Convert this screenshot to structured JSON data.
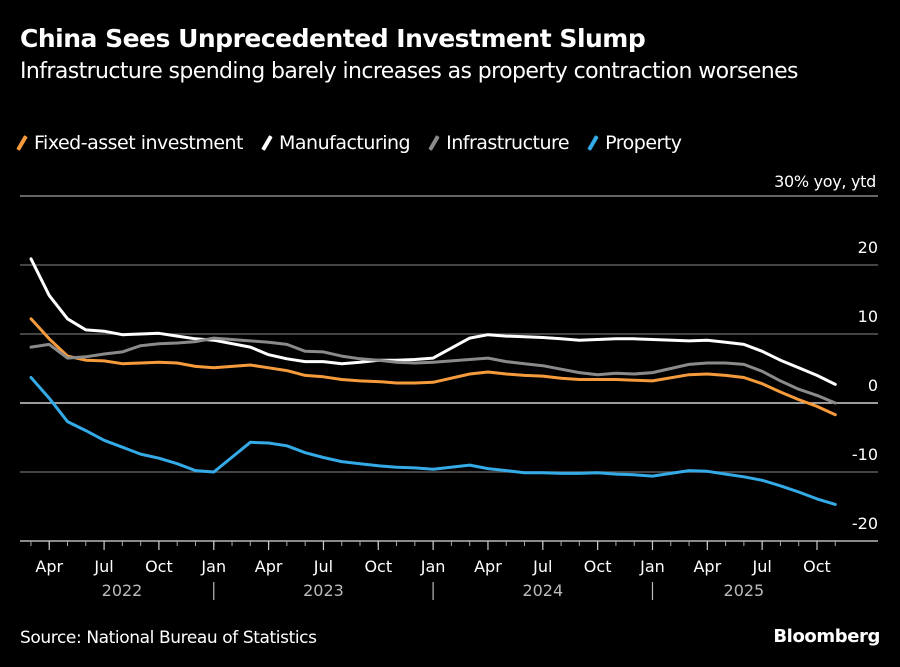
{
  "header": {
    "title": "China Sees Unprecedented Investment Slump",
    "subtitle": "Infrastructure spending barely increases as property contraction worsenes"
  },
  "footer": {
    "source": "Source: National Bureau of Statistics",
    "brand": "Bloomberg"
  },
  "chart_data": {
    "type": "line",
    "title": "China Sees Unprecedented Investment Slump",
    "subtitle": "Infrastructure spending barely increases as property contraction worsenes",
    "unit_label": "30% yoy, ytd",
    "xlabel": "",
    "ylabel": "% yoy, ytd",
    "ylim": [
      -20,
      30
    ],
    "yticks": [
      20,
      10,
      0,
      -10,
      -20
    ],
    "ytick_labels": [
      "20",
      "10",
      "0",
      "-10",
      "-20"
    ],
    "grid": true,
    "legend_position": "top-left",
    "x": [
      "2022-02",
      "2022-03",
      "2022-04",
      "2022-05",
      "2022-06",
      "2022-07",
      "2022-08",
      "2022-09",
      "2022-10",
      "2022-11",
      "2022-12",
      "2023-02",
      "2023-03",
      "2023-04",
      "2023-05",
      "2023-06",
      "2023-07",
      "2023-08",
      "2023-09",
      "2023-10",
      "2023-11",
      "2023-12",
      "2024-02",
      "2024-03",
      "2024-04",
      "2024-05",
      "2024-06",
      "2024-07",
      "2024-08",
      "2024-09",
      "2024-10",
      "2024-11",
      "2024-12",
      "2025-02",
      "2025-03",
      "2025-04",
      "2025-05",
      "2025-06",
      "2025-07",
      "2025-08",
      "2025-09",
      "2025-10"
    ],
    "x_month_labels": [
      {
        "label": "Apr",
        "month": "2022-04"
      },
      {
        "label": "Jul",
        "month": "2022-07"
      },
      {
        "label": "Oct",
        "month": "2022-10"
      },
      {
        "label": "Jan",
        "month": "2023-01"
      },
      {
        "label": "Apr",
        "month": "2023-04"
      },
      {
        "label": "Jul",
        "month": "2023-07"
      },
      {
        "label": "Oct",
        "month": "2023-10"
      },
      {
        "label": "Jan",
        "month": "2024-01"
      },
      {
        "label": "Apr",
        "month": "2024-04"
      },
      {
        "label": "Jul",
        "month": "2024-07"
      },
      {
        "label": "Oct",
        "month": "2024-10"
      },
      {
        "label": "Jan",
        "month": "2025-01"
      },
      {
        "label": "Apr",
        "month": "2025-04"
      },
      {
        "label": "Jul",
        "month": "2025-07"
      },
      {
        "label": "Oct",
        "month": "2025-10"
      }
    ],
    "x_year_labels": [
      "2022",
      "2023",
      "2024",
      "2025"
    ],
    "series": [
      {
        "name": "Fixed-asset investment",
        "color": "#f59b3c",
        "values": [
          12.2,
          9.3,
          6.8,
          6.2,
          6.1,
          5.7,
          5.8,
          5.9,
          5.8,
          5.3,
          5.1,
          5.5,
          5.1,
          4.7,
          4.0,
          3.8,
          3.4,
          3.2,
          3.1,
          2.9,
          2.9,
          3.0,
          4.2,
          4.5,
          4.2,
          4.0,
          3.9,
          3.6,
          3.4,
          3.4,
          3.4,
          3.3,
          3.2,
          4.1,
          4.2,
          4.0,
          3.7,
          2.8,
          1.6,
          0.5,
          -0.5,
          -1.7
        ]
      },
      {
        "name": "Manufacturing",
        "color": "#ffffff",
        "values": [
          20.9,
          15.6,
          12.2,
          10.6,
          10.4,
          9.9,
          10.0,
          10.1,
          9.7,
          9.3,
          9.1,
          8.1,
          7.0,
          6.4,
          6.0,
          6.0,
          5.7,
          5.9,
          6.2,
          6.2,
          6.3,
          6.5,
          9.4,
          9.9,
          9.7,
          9.6,
          9.5,
          9.3,
          9.1,
          9.2,
          9.3,
          9.3,
          9.2,
          9.0,
          9.1,
          8.8,
          8.5,
          7.5,
          6.2,
          5.1,
          4.0,
          2.7
        ]
      },
      {
        "name": "Infrastructure",
        "color": "#8a8a8a",
        "values": [
          8.1,
          8.5,
          6.5,
          6.7,
          7.1,
          7.4,
          8.3,
          8.6,
          8.7,
          8.9,
          9.4,
          9.0,
          8.8,
          8.5,
          7.5,
          7.4,
          6.8,
          6.4,
          6.2,
          5.9,
          5.8,
          5.9,
          6.3,
          6.5,
          6.0,
          5.7,
          5.4,
          4.9,
          4.4,
          4.1,
          4.3,
          4.2,
          4.4,
          5.6,
          5.8,
          5.8,
          5.6,
          4.6,
          3.2,
          2.0,
          1.1,
          0.0
        ]
      },
      {
        "name": "Property",
        "color": "#34aae6",
        "values": [
          3.7,
          0.7,
          -2.7,
          -4.0,
          -5.4,
          -6.4,
          -7.4,
          -8.0,
          -8.8,
          -9.8,
          -10.0,
          -5.7,
          -5.8,
          -6.2,
          -7.2,
          -7.9,
          -8.5,
          -8.8,
          -9.1,
          -9.3,
          -9.4,
          -9.6,
          -9.0,
          -9.5,
          -9.8,
          -10.1,
          -10.1,
          -10.2,
          -10.2,
          -10.1,
          -10.3,
          -10.4,
          -10.6,
          -9.8,
          -9.9,
          -10.3,
          -10.7,
          -11.2,
          -12.0,
          -12.9,
          -13.9,
          -14.7
        ]
      }
    ]
  }
}
